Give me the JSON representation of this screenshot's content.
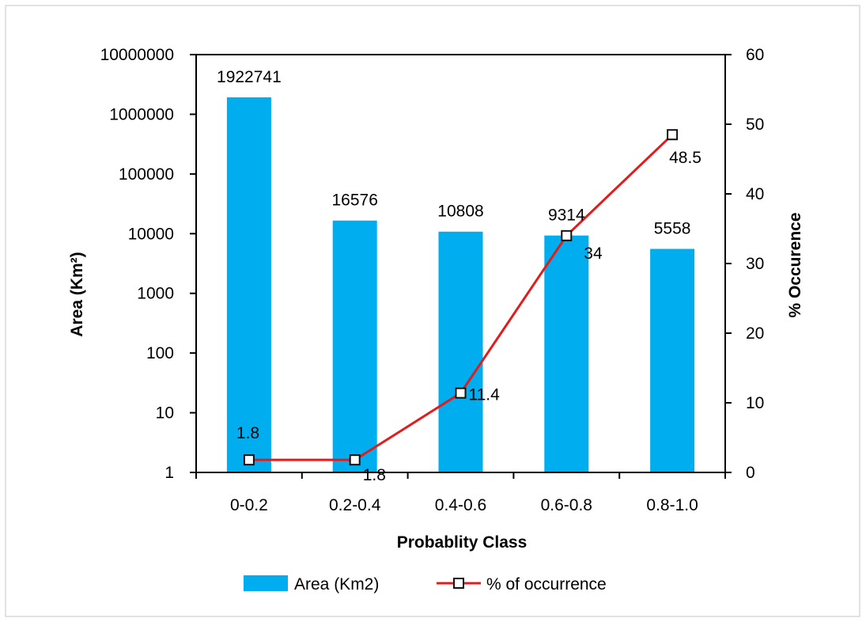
{
  "chart_data": {
    "type": "bar",
    "categories": [
      "0-0.2",
      "0.2-0.4",
      "0.4-0.6",
      "0.6-0.8",
      "0.8-1.0"
    ],
    "xlabel": "Probablity Class",
    "ylabel": "Area (Km²)",
    "y2label": "% Occurence",
    "y_scale": "log",
    "ylim": [
      1,
      10000000
    ],
    "y_ticks": [
      "1",
      "10",
      "100",
      "1000",
      "10000",
      "100000",
      "1000000",
      "10000000"
    ],
    "y2lim": [
      0,
      60
    ],
    "y2_ticks": [
      "0",
      "10",
      "20",
      "30",
      "40",
      "50",
      "60"
    ],
    "grid": false,
    "legend_position": "bottom",
    "series": [
      {
        "name": "Area (Km2)",
        "type": "bar",
        "axis": "left",
        "color": "#00aeef",
        "values": [
          1922741,
          16576,
          10808,
          9314,
          5558
        ],
        "labels": [
          "1922741",
          "16576",
          "10808",
          "9314",
          "5558"
        ]
      },
      {
        "name": "% of occurrence",
        "type": "line",
        "axis": "right",
        "color": "#e31b1b",
        "marker": "open-square",
        "values": [
          1.8,
          1.8,
          11.4,
          34,
          48.5
        ],
        "labels": [
          "1.8",
          "1.8",
          "11.4",
          "34",
          "48.5"
        ]
      }
    ]
  }
}
